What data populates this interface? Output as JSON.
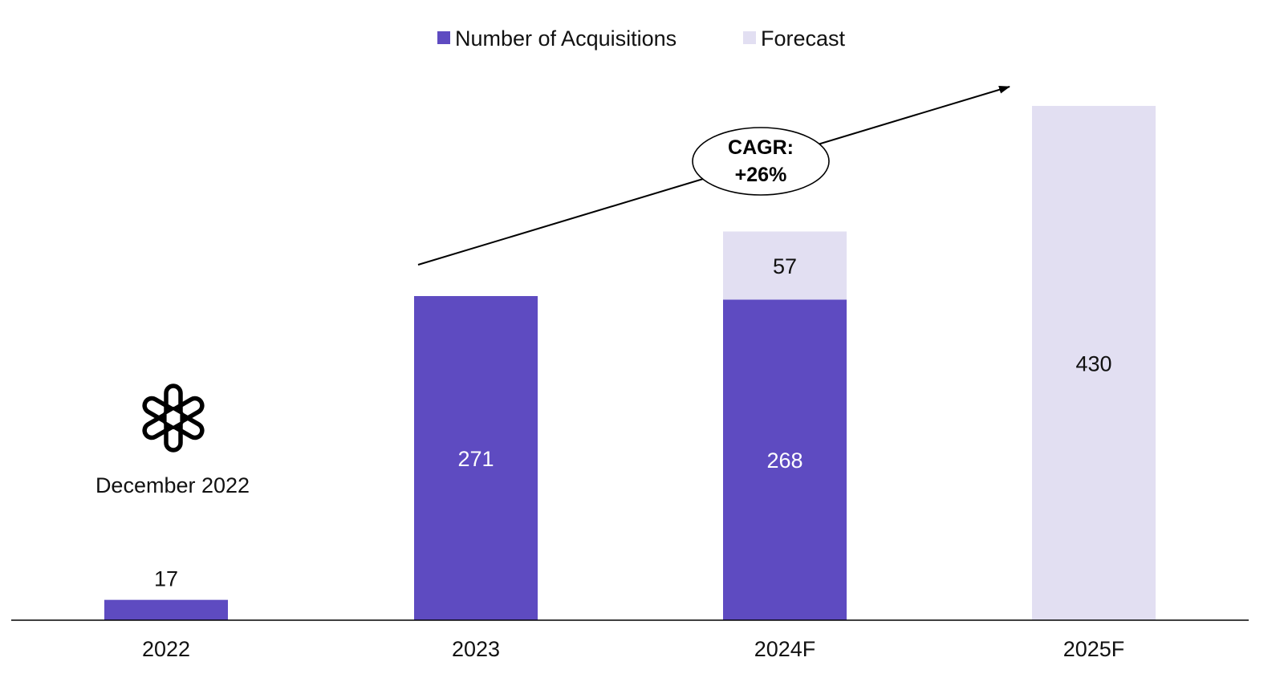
{
  "chart_data": {
    "type": "bar",
    "stacked": true,
    "categories": [
      "2022",
      "2023",
      "2024F",
      "2025F"
    ],
    "series": [
      {
        "name": "Number of Acquisitions",
        "color": "#5e4bc1",
        "label_color": "#ffffff",
        "values": [
          17,
          271,
          268,
          0
        ]
      },
      {
        "name": "Forecast",
        "color": "#e2dff2",
        "label_color": "#111111",
        "values": [
          0,
          0,
          57,
          430
        ]
      }
    ],
    "data_labels": [
      {
        "category": "2022",
        "series": "Number of Acquisitions",
        "text": "17",
        "position": "above"
      },
      {
        "category": "2023",
        "series": "Number of Acquisitions",
        "text": "271",
        "position": "inside"
      },
      {
        "category": "2024F",
        "series": "Number of Acquisitions",
        "text": "268",
        "position": "inside"
      },
      {
        "category": "2024F",
        "series": "Forecast",
        "text": "57",
        "position": "inside"
      },
      {
        "category": "2025F",
        "series": "Forecast",
        "text": "430",
        "position": "inside"
      }
    ],
    "ylim": [
      0,
      430
    ],
    "grid": false,
    "legend_position": "top-center",
    "annotation": {
      "lines": [
        "CAGR:",
        "+26%"
      ],
      "from_category": "2023",
      "to_category": "2025F"
    },
    "note": {
      "text": "December 2022",
      "category": "2022",
      "icon": "openai-logo-icon"
    }
  }
}
